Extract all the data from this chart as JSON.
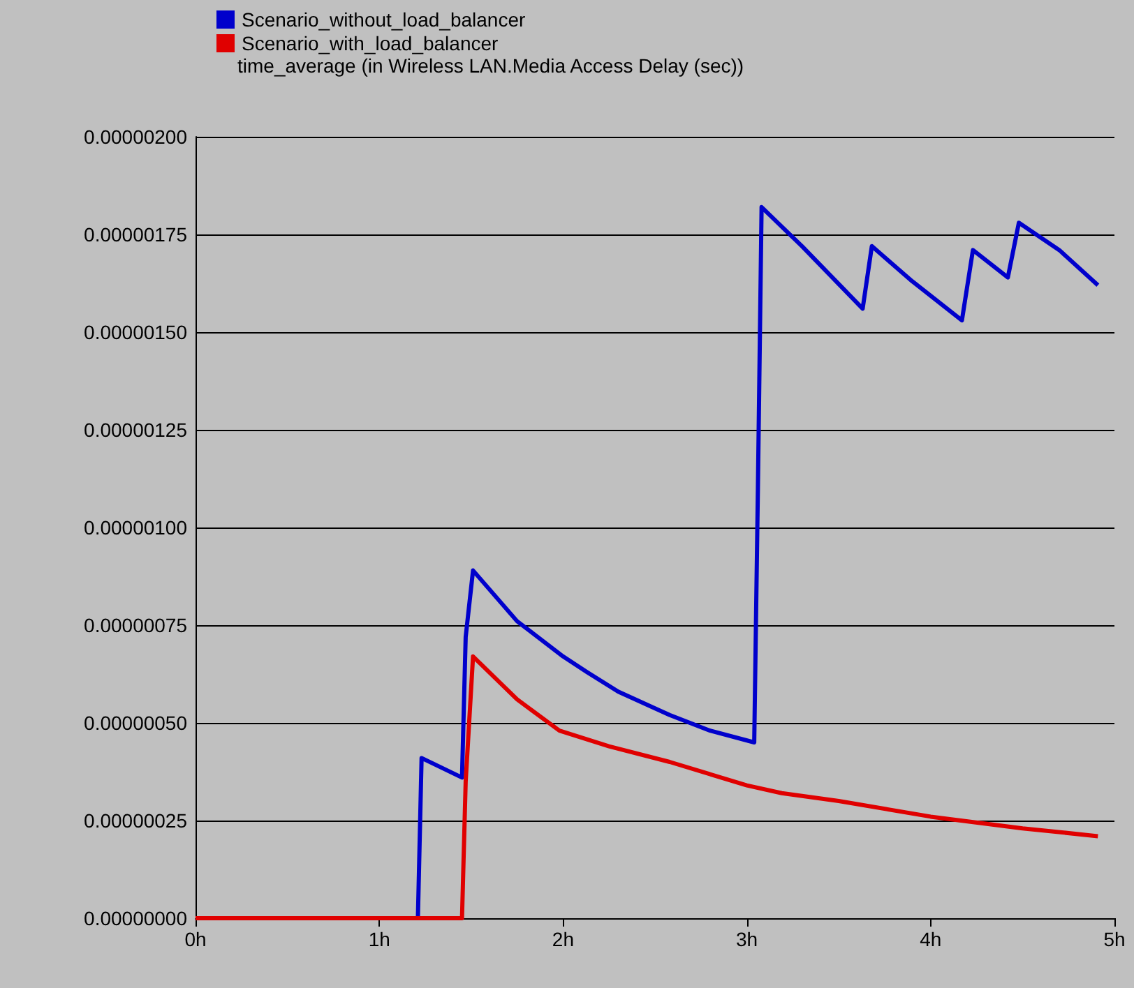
{
  "chart_data": {
    "type": "line",
    "legend_title": "time_average (in Wireless LAN.Media Access Delay (sec))",
    "legend": "top left",
    "grid": "y",
    "marker": "none",
    "line_style": "solid",
    "xlim": [
      0,
      5
    ],
    "xticks": [
      {
        "value": 0,
        "label": "0h"
      },
      {
        "value": 1,
        "label": "1h"
      },
      {
        "value": 2,
        "label": "2h"
      },
      {
        "value": 3,
        "label": "3h"
      },
      {
        "value": 4,
        "label": "4h"
      },
      {
        "value": 5,
        "label": "5h"
      }
    ],
    "ylim": [
      0,
      2e-06
    ],
    "yticks": [
      {
        "value": 0,
        "label": "0.00000000"
      },
      {
        "value": 2.5e-07,
        "label": "0.00000025"
      },
      {
        "value": 5e-07,
        "label": "0.00000050"
      },
      {
        "value": 7.5e-07,
        "label": "0.00000075"
      },
      {
        "value": 1e-06,
        "label": "0.00000100"
      },
      {
        "value": 1.25e-06,
        "label": "0.00000125"
      },
      {
        "value": 1.5e-06,
        "label": "0.00000150"
      },
      {
        "value": 1.75e-06,
        "label": "0.00000175"
      },
      {
        "value": 2e-06,
        "label": "0.00000200"
      }
    ],
    "series": [
      {
        "name": "Scenario_without_load_balancer",
        "color": "#0000cc",
        "x": [
          0,
          1.21,
          1.23,
          1.45,
          1.47,
          1.51,
          1.75,
          2.0,
          2.13,
          2.3,
          2.58,
          2.8,
          3.04,
          3.06,
          3.08,
          3.3,
          3.63,
          3.68,
          3.9,
          4.17,
          4.23,
          4.42,
          4.48,
          4.7,
          4.91
        ],
        "values": [
          0,
          0,
          4.1e-07,
          3.6e-07,
          7.2e-07,
          8.9e-07,
          7.6e-07,
          6.7e-07,
          6.3e-07,
          5.8e-07,
          5.2e-07,
          4.8e-07,
          4.5e-07,
          1.1e-06,
          1.82e-06,
          1.72e-06,
          1.56e-06,
          1.72e-06,
          1.63e-06,
          1.53e-06,
          1.71e-06,
          1.64e-06,
          1.78e-06,
          1.71e-06,
          1.62e-06
        ]
      },
      {
        "name": "Scenario_with_load_balancer",
        "color": "#e00000",
        "x": [
          0,
          1.45,
          1.47,
          1.51,
          1.75,
          1.98,
          2.25,
          2.58,
          3.0,
          3.19,
          3.5,
          4.0,
          4.5,
          4.91
        ],
        "values": [
          0,
          0,
          3.5e-07,
          6.7e-07,
          5.6e-07,
          4.8e-07,
          4.4e-07,
          4e-07,
          3.4e-07,
          3.2e-07,
          3e-07,
          2.6e-07,
          2.3e-07,
          2.1e-07
        ]
      }
    ]
  }
}
